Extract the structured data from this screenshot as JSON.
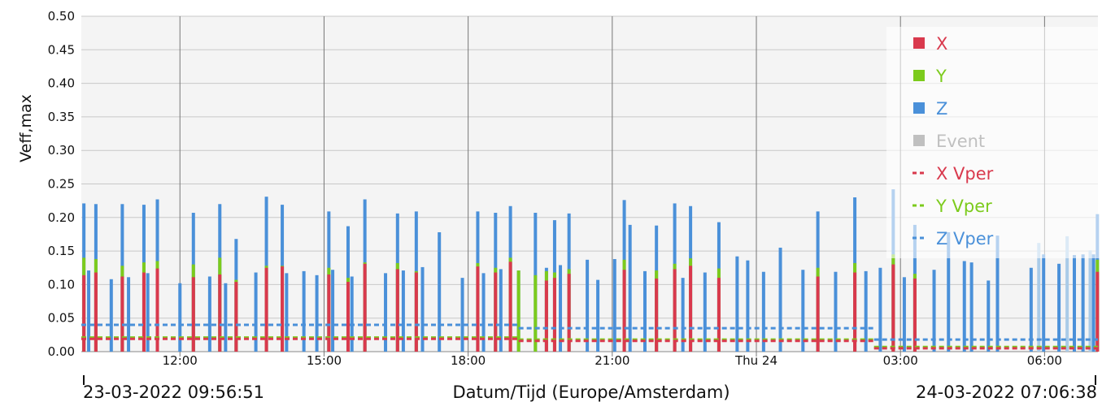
{
  "chart_data": {
    "type": "bar",
    "ylabel": "Veff,max",
    "xlabel": "Datum/Tijd (Europe/Amsterdam)",
    "start_label": "23-03-2022 09:56:51",
    "end_label": "24-03-2022 07:06:38",
    "x_range_hours": [
      9.947,
      31.111
    ],
    "ylim": [
      0,
      0.5
    ],
    "y_ticks": [
      "0.00",
      "0.05",
      "0.10",
      "0.15",
      "0.20",
      "0.25",
      "0.30",
      "0.35",
      "0.40",
      "0.45",
      "0.50"
    ],
    "x_ticks": [
      {
        "label": "12:00",
        "hour": 12
      },
      {
        "label": "15:00",
        "hour": 15
      },
      {
        "label": "18:00",
        "hour": 18
      },
      {
        "label": "21:00",
        "hour": 21
      },
      {
        "label": "Thu 24",
        "hour": 24
      },
      {
        "label": "03:00",
        "hour": 27
      },
      {
        "label": "06:00",
        "hour": 30
      }
    ],
    "grid": true,
    "legend_position": "top-right",
    "legend": [
      {
        "label": "X",
        "kind": "box",
        "color": "#d9394d"
      },
      {
        "label": "Y",
        "kind": "box",
        "color": "#7ccb1c"
      },
      {
        "label": "Z",
        "kind": "box",
        "color": "#4a90d9"
      },
      {
        "label": "Event",
        "kind": "box",
        "color": "#c0c0c0",
        "faded": true
      },
      {
        "label": "X Vper",
        "kind": "dash",
        "color": "#d9394d"
      },
      {
        "label": "Y Vper",
        "kind": "dash",
        "color": "#7ccb1c"
      },
      {
        "label": "Z Vper",
        "kind": "dash",
        "color": "#4a90d9"
      }
    ],
    "colors": {
      "X": "#d9394d",
      "Y": "#7ccb1c",
      "Z": "#4a90d9",
      "Zfaded": "#a9cbe8",
      "Event": "#c0c0c0"
    },
    "bars": [
      {
        "t": 10.0,
        "z": 0.221,
        "y": 0.14,
        "x": 0.114
      },
      {
        "t": 10.1,
        "z": 0.121
      },
      {
        "t": 10.25,
        "z": 0.22,
        "y": 0.138,
        "x": 0.118
      },
      {
        "t": 10.57,
        "z": 0.108
      },
      {
        "t": 10.8,
        "z": 0.22,
        "y": 0.128,
        "x": 0.112
      },
      {
        "t": 10.93,
        "z": 0.111
      },
      {
        "t": 11.25,
        "z": 0.219,
        "y": 0.133,
        "x": 0.118
      },
      {
        "t": 11.33,
        "z": 0.117
      },
      {
        "t": 11.53,
        "z": 0.227,
        "y": 0.135,
        "x": 0.124
      },
      {
        "t": 12.0,
        "z": 0.102
      },
      {
        "t": 12.28,
        "z": 0.207,
        "y": 0.13,
        "x": 0.111
      },
      {
        "t": 12.62,
        "z": 0.112
      },
      {
        "t": 12.83,
        "z": 0.22,
        "y": 0.14,
        "x": 0.115
      },
      {
        "t": 12.95,
        "z": 0.102
      },
      {
        "t": 13.17,
        "z": 0.168,
        "y": 0.107,
        "x": 0.104
      },
      {
        "t": 13.58,
        "z": 0.118
      },
      {
        "t": 13.8,
        "z": 0.231,
        "y": 0.128,
        "x": 0.125
      },
      {
        "t": 14.13,
        "z": 0.219,
        "y": 0.128,
        "x": 0.127
      },
      {
        "t": 14.22,
        "z": 0.117
      },
      {
        "t": 14.58,
        "z": 0.12
      },
      {
        "t": 14.85,
        "z": 0.114
      },
      {
        "t": 15.1,
        "z": 0.209,
        "y": 0.125,
        "x": 0.115
      },
      {
        "t": 15.18,
        "z": 0.122
      },
      {
        "t": 15.5,
        "z": 0.187,
        "y": 0.11,
        "x": 0.104
      },
      {
        "t": 15.58,
        "z": 0.112
      },
      {
        "t": 15.85,
        "z": 0.227,
        "y": 0.133,
        "x": 0.131
      },
      {
        "t": 16.28,
        "z": 0.117
      },
      {
        "t": 16.53,
        "z": 0.206,
        "y": 0.132,
        "x": 0.123
      },
      {
        "t": 16.65,
        "z": 0.121
      },
      {
        "t": 16.92,
        "z": 0.209,
        "y": 0.12,
        "x": 0.118
      },
      {
        "t": 17.05,
        "z": 0.126
      },
      {
        "t": 17.4,
        "z": 0.178
      },
      {
        "t": 17.88,
        "z": 0.11
      },
      {
        "t": 18.2,
        "z": 0.209,
        "y": 0.132,
        "x": 0.127
      },
      {
        "t": 18.32,
        "z": 0.117
      },
      {
        "t": 18.57,
        "z": 0.207,
        "y": 0.125,
        "x": 0.118
      },
      {
        "t": 18.68,
        "z": 0.123
      },
      {
        "t": 18.88,
        "z": 0.217,
        "y": 0.14,
        "x": 0.134
      },
      {
        "t": 19.05,
        "z": 0.121,
        "y": 0.121
      },
      {
        "t": 19.4,
        "z": 0.207,
        "y": 0.114
      },
      {
        "t": 19.63,
        "z": 0.125,
        "y": 0.12,
        "x": 0.106
      },
      {
        "t": 19.8,
        "z": 0.196,
        "y": 0.118,
        "x": 0.11
      },
      {
        "t": 19.92,
        "z": 0.129
      },
      {
        "t": 20.1,
        "z": 0.206,
        "y": 0.123,
        "x": 0.116
      },
      {
        "t": 20.48,
        "z": 0.137
      },
      {
        "t": 20.7,
        "z": 0.107
      },
      {
        "t": 21.05,
        "z": 0.138
      },
      {
        "t": 21.25,
        "z": 0.226,
        "y": 0.137,
        "x": 0.122
      },
      {
        "t": 21.37,
        "z": 0.189
      },
      {
        "t": 21.68,
        "z": 0.12
      },
      {
        "t": 21.92,
        "z": 0.188,
        "y": 0.121,
        "x": 0.109
      },
      {
        "t": 22.3,
        "z": 0.221,
        "y": 0.131,
        "x": 0.123
      },
      {
        "t": 22.47,
        "z": 0.11
      },
      {
        "t": 22.63,
        "z": 0.217,
        "y": 0.139,
        "x": 0.128
      },
      {
        "t": 22.93,
        "z": 0.118
      },
      {
        "t": 23.22,
        "z": 0.193,
        "y": 0.124,
        "x": 0.11
      },
      {
        "t": 23.6,
        "z": 0.142
      },
      {
        "t": 23.82,
        "z": 0.136
      },
      {
        "t": 24.15,
        "z": 0.119
      },
      {
        "t": 24.5,
        "z": 0.155
      },
      {
        "t": 24.97,
        "z": 0.122
      },
      {
        "t": 25.28,
        "z": 0.209,
        "y": 0.125,
        "x": 0.112
      },
      {
        "t": 25.65,
        "z": 0.119
      },
      {
        "t": 26.05,
        "z": 0.23,
        "y": 0.132,
        "x": 0.118
      },
      {
        "t": 26.28,
        "z": 0.12
      },
      {
        "t": 26.58,
        "z": 0.125
      },
      {
        "t": 26.85,
        "z": 0.242,
        "y": 0.145,
        "x": 0.13
      },
      {
        "t": 27.08,
        "z": 0.111
      },
      {
        "t": 27.3,
        "z": 0.189,
        "y": 0.116,
        "x": 0.109
      },
      {
        "t": 27.7,
        "z": 0.122
      },
      {
        "t": 28.0,
        "z": 0.178
      },
      {
        "t": 28.33,
        "z": 0.135
      },
      {
        "t": 28.48,
        "z": 0.133
      },
      {
        "t": 28.83,
        "z": 0.106
      },
      {
        "t": 29.02,
        "z": 0.173
      },
      {
        "t": 29.72,
        "z": 0.125
      },
      {
        "t": 29.88,
        "z": 0.162,
        "faded": true
      },
      {
        "t": 29.98,
        "z": 0.145
      },
      {
        "t": 30.3,
        "z": 0.131
      },
      {
        "t": 30.47,
        "z": 0.172,
        "faded": true
      },
      {
        "t": 30.62,
        "z": 0.144
      },
      {
        "t": 30.8,
        "z": 0.145
      },
      {
        "t": 30.95,
        "z": 0.151,
        "faded": true
      },
      {
        "t": 31.02,
        "z": 0.145
      },
      {
        "t": 31.1,
        "z": 0.205,
        "y": 0.137,
        "x": 0.119
      }
    ],
    "vper": [
      {
        "series": "Z",
        "color": "#4a90d9",
        "segments": [
          {
            "from": 9.947,
            "to": 19.05,
            "value": 0.04
          },
          {
            "from": 19.05,
            "to": 26.45,
            "value": 0.035
          },
          {
            "from": 26.45,
            "to": 31.111,
            "value": 0.018
          }
        ]
      },
      {
        "series": "Y",
        "color": "#7ccb1c",
        "segments": [
          {
            "from": 9.947,
            "to": 19.05,
            "value": 0.021
          },
          {
            "from": 19.05,
            "to": 26.45,
            "value": 0.018
          },
          {
            "from": 26.45,
            "to": 31.111,
            "value": 0.007
          }
        ]
      },
      {
        "series": "X",
        "color": "#d9394d",
        "segments": [
          {
            "from": 9.947,
            "to": 19.05,
            "value": 0.019
          },
          {
            "from": 19.05,
            "to": 26.45,
            "value": 0.016
          },
          {
            "from": 26.45,
            "to": 31.111,
            "value": 0.005
          }
        ]
      }
    ]
  }
}
